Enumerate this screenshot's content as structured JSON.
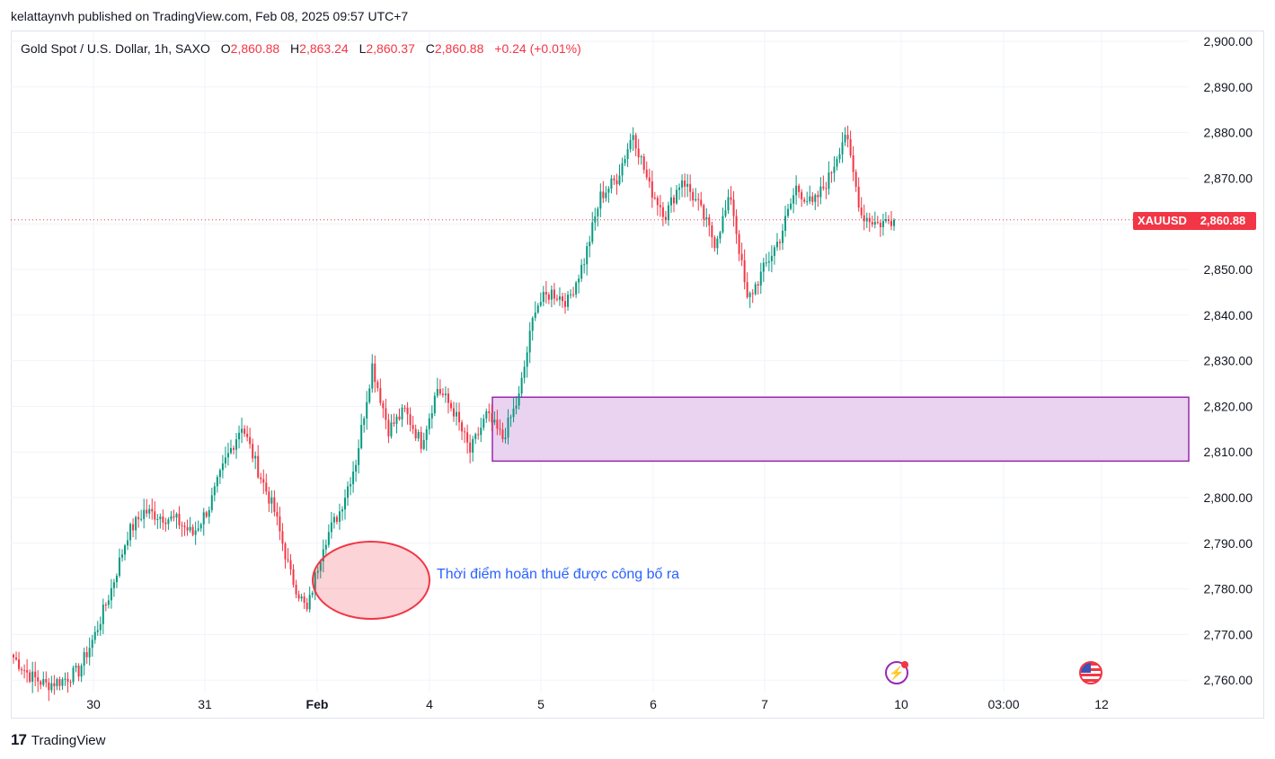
{
  "header": {
    "caption": "kelattaynvh published on TradingView.com, Feb 08, 2025 09:57 UTC+7"
  },
  "legend": {
    "symbol": "Gold Spot / U.S. Dollar, 1h, SAXO",
    "o_label": "O",
    "o_value": "2,860.88",
    "h_label": "H",
    "h_value": "2,863.24",
    "l_label": "L",
    "l_value": "2,860.37",
    "c_label": "C",
    "c_value": "2,860.88",
    "change": "+0.24 (+0.01%)"
  },
  "last_price": {
    "ticker": "XAUUSD",
    "value": "2,860.88"
  },
  "annotation": {
    "text": "Thời điểm hoãn thuế được công bố ra"
  },
  "footer": {
    "brand": "TradingView",
    "mark": "17"
  },
  "colors": {
    "up": "#089981",
    "down": "#f23645",
    "zone_fill": "#e9d3f0",
    "zone_border": "#9c27b0",
    "annotation": "#2962ff"
  },
  "icons": {
    "event_1": "lightning-event-icon",
    "event_2": "us-flag-event-icon"
  },
  "chart_data": {
    "type": "candlestick",
    "instrument": "Gold Spot / U.S. Dollar",
    "timeframe": "1h",
    "y_axis": {
      "ticks": [
        "2,900.00",
        "2,890.00",
        "2,880.00",
        "2,870.00",
        "2,860.00",
        "2,850.00",
        "2,840.00",
        "2,830.00",
        "2,820.00",
        "2,810.00",
        "2,800.00",
        "2,790.00",
        "2,780.00",
        "2,770.00",
        "2,760.00"
      ],
      "ylim": [
        2757,
        2902
      ]
    },
    "x_axis": {
      "ticks": [
        {
          "label": "30",
          "bold": false
        },
        {
          "label": "31",
          "bold": false
        },
        {
          "label": "Feb",
          "bold": true
        },
        {
          "label": "4",
          "bold": false
        },
        {
          "label": "5",
          "bold": false
        },
        {
          "label": "6",
          "bold": false
        },
        {
          "label": "7",
          "bold": false
        },
        {
          "label": "10",
          "bold": false
        },
        {
          "label": "03:00",
          "bold": false
        },
        {
          "label": "12",
          "bold": false
        }
      ]
    },
    "last_price": 2860.88,
    "zone": {
      "top": 2822,
      "bottom": 2808
    },
    "anchors": [
      2765,
      2761,
      2759,
      2760,
      2762,
      2770,
      2780,
      2792,
      2797,
      2796,
      2795,
      2792,
      2798,
      2808,
      2816,
      2806,
      2797,
      2783,
      2775,
      2790,
      2797,
      2808,
      2829,
      2815,
      2819,
      2812,
      2824,
      2819,
      2810,
      2818,
      2813,
      2822,
      2842,
      2845,
      2843,
      2852,
      2866,
      2870,
      2880,
      2868,
      2862,
      2870,
      2864,
      2856,
      2866,
      2843,
      2850,
      2857,
      2868,
      2864,
      2870,
      2880,
      2862,
      2860,
      2861
    ]
  }
}
